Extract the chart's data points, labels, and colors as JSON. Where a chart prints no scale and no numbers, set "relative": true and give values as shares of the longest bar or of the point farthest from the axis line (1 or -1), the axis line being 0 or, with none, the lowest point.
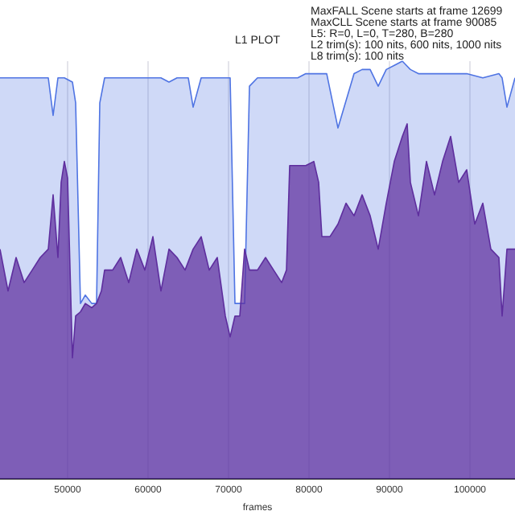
{
  "chart_data": {
    "type": "area",
    "title": "L1 PLOT",
    "xlabel": "frames",
    "relative": true,
    "tick_labels": "x",
    "grid": "x",
    "legend": false,
    "marker": "none",
    "annotations": [
      "MaxFALL Scene starts at frame 12699",
      "MaxCLL Scene starts at frame 90085",
      "L5: R=0, L=0, T=280, B=280",
      "L2 trim(s): 100 nits, 600 nits, 1000 nits",
      "L8 trim(s): 100 nits"
    ],
    "xlim": [
      41600,
      105600
    ],
    "xticks": [
      50000,
      60000,
      70000,
      80000,
      90000,
      100000
    ],
    "series": [
      {
        "color": "#4f74e3",
        "x": [
          41600,
          42600,
          43600,
          44600,
          45600,
          46600,
          47600,
          48200,
          48800,
          49600,
          50600,
          51000,
          51600,
          52200,
          53000,
          53600,
          54000,
          54600,
          55600,
          56600,
          57600,
          58600,
          59600,
          60600,
          61600,
          62600,
          63600,
          64600,
          65000,
          65600,
          66600,
          67600,
          68600,
          69600,
          70200,
          70800,
          71400,
          72000,
          72600,
          73600,
          74600,
          75600,
          76600,
          77600,
          78600,
          79600,
          80600,
          81600,
          82200,
          83600,
          85600,
          86600,
          87600,
          88600,
          89600,
          90600,
          91600,
          92600,
          93600,
          94600,
          95600,
          97600,
          99600,
          101600,
          103600,
          104000,
          104600,
          105600
        ],
        "values": [
          0.96,
          0.96,
          0.96,
          0.96,
          0.96,
          0.96,
          0.96,
          0.87,
          0.96,
          0.96,
          0.95,
          0.9,
          0.42,
          0.44,
          0.42,
          0.42,
          0.9,
          0.96,
          0.96,
          0.96,
          0.96,
          0.96,
          0.96,
          0.96,
          0.96,
          0.95,
          0.96,
          0.96,
          0.96,
          0.89,
          0.96,
          0.96,
          0.96,
          0.96,
          0.96,
          0.42,
          0.42,
          0.42,
          0.94,
          0.96,
          0.96,
          0.96,
          0.96,
          0.96,
          0.96,
          0.97,
          0.97,
          0.97,
          0.97,
          0.84,
          0.97,
          0.98,
          0.98,
          0.94,
          0.98,
          0.99,
          1,
          0.98,
          0.97,
          0.97,
          0.97,
          0.97,
          0.97,
          0.96,
          0.97,
          0.96,
          0.89,
          0.96
        ]
      },
      {
        "color": "#5e2e9e",
        "x": [
          41600,
          42600,
          43600,
          44600,
          45600,
          46600,
          47600,
          48200,
          48800,
          49200,
          49600,
          50000,
          50600,
          51000,
          51600,
          52200,
          53000,
          53600,
          54200,
          54600,
          55600,
          56600,
          57600,
          58600,
          59600,
          60600,
          61600,
          62600,
          63600,
          64600,
          65600,
          66600,
          67600,
          68600,
          69600,
          70200,
          70800,
          71400,
          72000,
          72600,
          73600,
          74600,
          75600,
          76600,
          77200,
          77600,
          78600,
          79600,
          80600,
          81200,
          81600,
          82600,
          83600,
          84600,
          85600,
          86600,
          87600,
          88600,
          89600,
          90600,
          91600,
          92200,
          92600,
          93600,
          94600,
          95600,
          96600,
          97600,
          98600,
          99600,
          100600,
          101600,
          102600,
          103600,
          104000,
          104600,
          105600
        ],
        "values": [
          0.55,
          0.45,
          0.53,
          0.47,
          0.5,
          0.53,
          0.55,
          0.68,
          0.53,
          0.71,
          0.76,
          0.72,
          0.29,
          0.39,
          0.4,
          0.42,
          0.41,
          0.42,
          0.45,
          0.5,
          0.5,
          0.53,
          0.47,
          0.55,
          0.5,
          0.58,
          0.45,
          0.55,
          0.53,
          0.5,
          0.55,
          0.58,
          0.5,
          0.53,
          0.39,
          0.34,
          0.39,
          0.39,
          0.55,
          0.5,
          0.5,
          0.53,
          0.5,
          0.47,
          0.5,
          0.75,
          0.75,
          0.75,
          0.76,
          0.71,
          0.58,
          0.58,
          0.61,
          0.66,
          0.63,
          0.68,
          0.63,
          0.55,
          0.66,
          0.76,
          0.82,
          0.85,
          0.71,
          0.63,
          0.76,
          0.68,
          0.76,
          0.82,
          0.71,
          0.74,
          0.61,
          0.66,
          0.55,
          0.53,
          0.39,
          0.55,
          0.55
        ]
      }
    ]
  }
}
